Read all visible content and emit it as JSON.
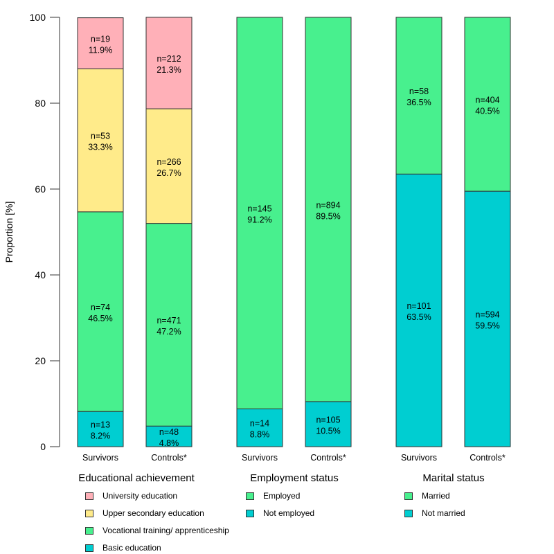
{
  "chart_data": {
    "type": "bar",
    "stacked": true,
    "title": "",
    "xlabel": "",
    "ylabel": "Proportion [%]",
    "ylim": [
      0,
      100
    ],
    "yticks": [
      0,
      20,
      40,
      60,
      80,
      100
    ],
    "grid": false,
    "groups": [
      {
        "name": "Educational achievement",
        "categories": [
          "Survivors",
          "Controls*"
        ],
        "series": [
          {
            "name": "Basic education",
            "color": "#00CED1",
            "values": [
              8.2,
              4.8
            ],
            "n": [
              13,
              48
            ]
          },
          {
            "name": "Vocational training/ apprenticeship",
            "color": "#48F08E",
            "values": [
              46.5,
              47.2
            ],
            "n": [
              74,
              471
            ]
          },
          {
            "name": "Upper secondary education",
            "color": "#FFEB8A",
            "values": [
              33.3,
              26.7
            ],
            "n": [
              53,
              266
            ]
          },
          {
            "name": "University education",
            "color": "#FFB0B8",
            "values": [
              11.9,
              21.3
            ],
            "n": [
              19,
              212
            ]
          }
        ],
        "legend": [
          "University education",
          "Upper secondary education",
          "Vocational training/ apprenticeship",
          "Basic education"
        ]
      },
      {
        "name": "Employment status",
        "categories": [
          "Survivors",
          "Controls*"
        ],
        "series": [
          {
            "name": "Not employed",
            "color": "#00CED1",
            "values": [
              8.8,
              10.5
            ],
            "n": [
              14,
              105
            ]
          },
          {
            "name": "Employed",
            "color": "#48F08E",
            "values": [
              91.2,
              89.5
            ],
            "n": [
              145,
              894
            ]
          }
        ],
        "legend": [
          "Employed",
          "Not employed"
        ]
      },
      {
        "name": "Marital status",
        "categories": [
          "Survivors",
          "Controls*"
        ],
        "series": [
          {
            "name": "Not married",
            "color": "#00CED1",
            "values": [
              63.5,
              59.5
            ],
            "n": [
              101,
              594
            ]
          },
          {
            "name": "Married",
            "color": "#48F08E",
            "values": [
              36.5,
              40.5
            ],
            "n": [
              58,
              404
            ]
          }
        ],
        "legend": [
          "Married",
          "Not married"
        ]
      }
    ]
  }
}
